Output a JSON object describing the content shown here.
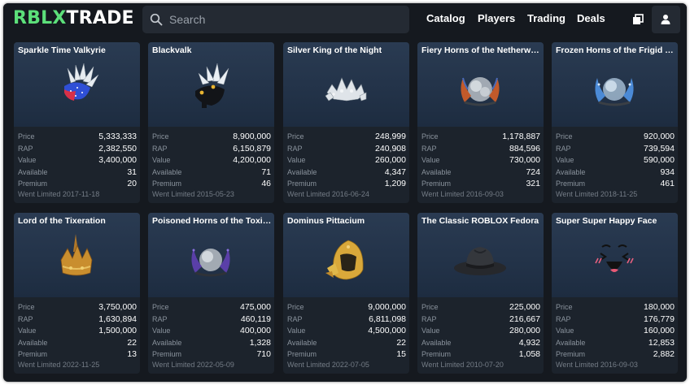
{
  "brand": {
    "logo_prefix": "RBLX",
    "logo_suffix": "TRADE"
  },
  "search": {
    "placeholder": "Search"
  },
  "nav": {
    "links": [
      "Catalog",
      "Players",
      "Trading",
      "Deals"
    ]
  },
  "stat_labels": {
    "price": "Price",
    "rap": "RAP",
    "value": "Value",
    "available": "Available",
    "premium": "Premium"
  },
  "items": [
    {
      "name": "Sparkle Time Valkyrie",
      "icon": "valkyrie-sparkle-icon",
      "price": "5,333,333",
      "rap": "2,382,550",
      "value": "3,400,000",
      "available": "31",
      "premium": "20",
      "went_limited": "Went Limited 2017-11-18"
    },
    {
      "name": "Blackvalk",
      "icon": "valkyrie-black-icon",
      "price": "8,900,000",
      "rap": "6,150,879",
      "value": "4,200,000",
      "available": "71",
      "premium": "46",
      "went_limited": "Went Limited 2015-05-23"
    },
    {
      "name": "Silver King of the Night",
      "icon": "silver-crown-icon",
      "price": "248,999",
      "rap": "240,908",
      "value": "260,000",
      "available": "4,347",
      "premium": "1,209",
      "went_limited": "Went Limited 2016-06-24"
    },
    {
      "name": "Fiery Horns of the Netherworld",
      "icon": "fiery-horns-icon",
      "price": "1,178,887",
      "rap": "884,596",
      "value": "730,000",
      "available": "724",
      "premium": "321",
      "went_limited": "Went Limited 2016-09-03"
    },
    {
      "name": "Frozen Horns of the Frigid Planes",
      "icon": "frozen-horns-icon",
      "price": "920,000",
      "rap": "739,594",
      "value": "590,000",
      "available": "934",
      "premium": "461",
      "went_limited": "Went Limited 2018-11-25"
    },
    {
      "name": "Lord of the Tixeration",
      "icon": "gold-crown-icon",
      "price": "3,750,000",
      "rap": "1,630,894",
      "value": "1,500,000",
      "available": "22",
      "premium": "13",
      "went_limited": "Went Limited 2022-11-25"
    },
    {
      "name": "Poisoned Horns of the Toxic Wasteland",
      "icon": "poisoned-horns-icon",
      "price": "475,000",
      "rap": "460,119",
      "value": "400,000",
      "available": "1,328",
      "premium": "710",
      "went_limited": "Went Limited 2022-05-09"
    },
    {
      "name": "Dominus Pittacium",
      "icon": "dominus-helmet-icon",
      "price": "9,000,000",
      "rap": "6,811,098",
      "value": "4,500,000",
      "available": "22",
      "premium": "15",
      "went_limited": "Went Limited 2022-07-05"
    },
    {
      "name": "The Classic ROBLOX Fedora",
      "icon": "fedora-icon",
      "price": "225,000",
      "rap": "216,667",
      "value": "280,000",
      "available": "4,932",
      "premium": "1,058",
      "went_limited": "Went Limited 2010-07-20"
    },
    {
      "name": "Super Super Happy Face",
      "icon": "happy-face-icon",
      "price": "180,000",
      "rap": "176,779",
      "value": "160,000",
      "available": "12,853",
      "premium": "2,882",
      "went_limited": "Went Limited 2016-09-03"
    }
  ],
  "colors": {
    "background": "#15191f",
    "card": "#1c232c",
    "image_area": "#233349",
    "brand_accent": "#5ce07a",
    "label": "#8a939d"
  }
}
